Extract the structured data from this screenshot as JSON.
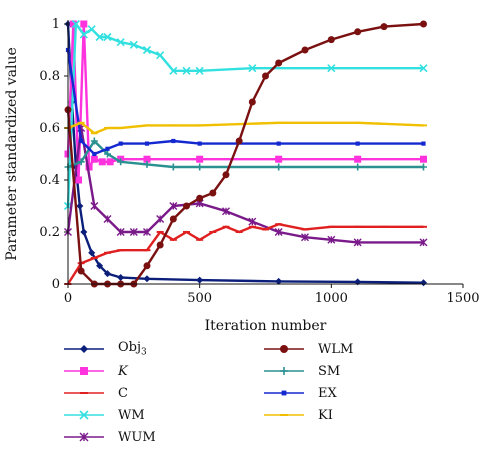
{
  "chart_data": {
    "type": "line",
    "title": "",
    "xlabel": "Iteration number",
    "ylabel": "Parameter standardized value",
    "xlim": [
      0,
      1500
    ],
    "ylim": [
      0,
      1
    ],
    "xticks": [
      "0",
      "500",
      "1000",
      "1500"
    ],
    "yticks": [
      "0",
      "0.2",
      "0.4",
      "0.6",
      "0.8",
      "1"
    ],
    "grid": false,
    "legend_position": "bottom",
    "series": [
      {
        "name": "Obj",
        "name_sub": "3",
        "italic": false,
        "color": "#0b1f7a",
        "marker": "diamond",
        "x": [
          0,
          15,
          30,
          45,
          60,
          90,
          120,
          150,
          200,
          300,
          500,
          800,
          1100,
          1350
        ],
        "y": [
          1.0,
          0.7,
          0.45,
          0.3,
          0.2,
          0.12,
          0.07,
          0.04,
          0.025,
          0.02,
          0.015,
          0.01,
          0.008,
          0.005
        ]
      },
      {
        "name": "K",
        "italic": true,
        "color": "#ff33dd",
        "marker": "square",
        "x": [
          0,
          20,
          40,
          60,
          80,
          100,
          130,
          160,
          200,
          300,
          500,
          800,
          1100,
          1350
        ],
        "y": [
          0.5,
          1.0,
          0.4,
          1.0,
          0.45,
          0.48,
          0.47,
          0.47,
          0.48,
          0.48,
          0.48,
          0.48,
          0.48,
          0.48
        ]
      },
      {
        "name": "C",
        "italic": false,
        "color": "#e02020",
        "marker": "dash",
        "x": [
          0,
          50,
          100,
          150,
          200,
          300,
          350,
          400,
          450,
          500,
          550,
          600,
          650,
          700,
          750,
          800,
          900,
          1000,
          1100,
          1200,
          1350
        ],
        "y": [
          0.0,
          0.08,
          0.1,
          0.12,
          0.13,
          0.13,
          0.2,
          0.17,
          0.2,
          0.17,
          0.2,
          0.22,
          0.2,
          0.22,
          0.21,
          0.23,
          0.21,
          0.22,
          0.22,
          0.22,
          0.22
        ]
      },
      {
        "name": "WM",
        "italic": false,
        "color": "#33e0e0",
        "marker": "x",
        "x": [
          0,
          30,
          60,
          90,
          120,
          150,
          200,
          250,
          300,
          350,
          400,
          450,
          500,
          700,
          1000,
          1350
        ],
        "y": [
          0.3,
          1.0,
          0.96,
          0.98,
          0.95,
          0.95,
          0.93,
          0.92,
          0.9,
          0.88,
          0.82,
          0.82,
          0.82,
          0.83,
          0.83,
          0.83
        ]
      },
      {
        "name": "WUM",
        "italic": false,
        "color": "#7a1a8a",
        "marker": "star",
        "x": [
          0,
          50,
          100,
          150,
          200,
          250,
          300,
          350,
          400,
          500,
          600,
          700,
          800,
          900,
          1000,
          1100,
          1350
        ],
        "y": [
          0.2,
          0.6,
          0.3,
          0.25,
          0.2,
          0.2,
          0.2,
          0.25,
          0.3,
          0.31,
          0.28,
          0.24,
          0.2,
          0.18,
          0.17,
          0.16,
          0.16
        ]
      },
      {
        "name": "WLM",
        "italic": false,
        "color": "#7a1010",
        "marker": "circle",
        "x": [
          0,
          50,
          100,
          150,
          200,
          250,
          300,
          350,
          400,
          450,
          500,
          550,
          600,
          650,
          700,
          750,
          800,
          900,
          1000,
          1100,
          1200,
          1350
        ],
        "y": [
          0.67,
          0.05,
          0.0,
          0.0,
          0.0,
          0.0,
          0.07,
          0.15,
          0.25,
          0.3,
          0.33,
          0.35,
          0.42,
          0.55,
          0.7,
          0.8,
          0.85,
          0.9,
          0.94,
          0.97,
          0.99,
          1.0
        ]
      },
      {
        "name": "SM",
        "italic": false,
        "color": "#2a9090",
        "marker": "plus",
        "x": [
          0,
          50,
          100,
          150,
          200,
          300,
          400,
          500,
          800,
          1100,
          1350
        ],
        "y": [
          0.45,
          0.47,
          0.55,
          0.5,
          0.47,
          0.46,
          0.45,
          0.45,
          0.45,
          0.45,
          0.45
        ]
      },
      {
        "name": "EX",
        "italic": false,
        "color": "#1428d0",
        "marker": "smallsq",
        "x": [
          0,
          50,
          100,
          150,
          200,
          300,
          400,
          500,
          800,
          1100,
          1350
        ],
        "y": [
          0.9,
          0.55,
          0.5,
          0.52,
          0.54,
          0.54,
          0.55,
          0.54,
          0.54,
          0.54,
          0.54
        ]
      },
      {
        "name": "KI",
        "italic": false,
        "color": "#f0c000",
        "marker": "dash",
        "x": [
          0,
          50,
          100,
          150,
          200,
          300,
          400,
          500,
          800,
          1100,
          1350
        ],
        "y": [
          0.6,
          0.62,
          0.58,
          0.6,
          0.6,
          0.61,
          0.61,
          0.61,
          0.62,
          0.62,
          0.61
        ]
      }
    ]
  }
}
